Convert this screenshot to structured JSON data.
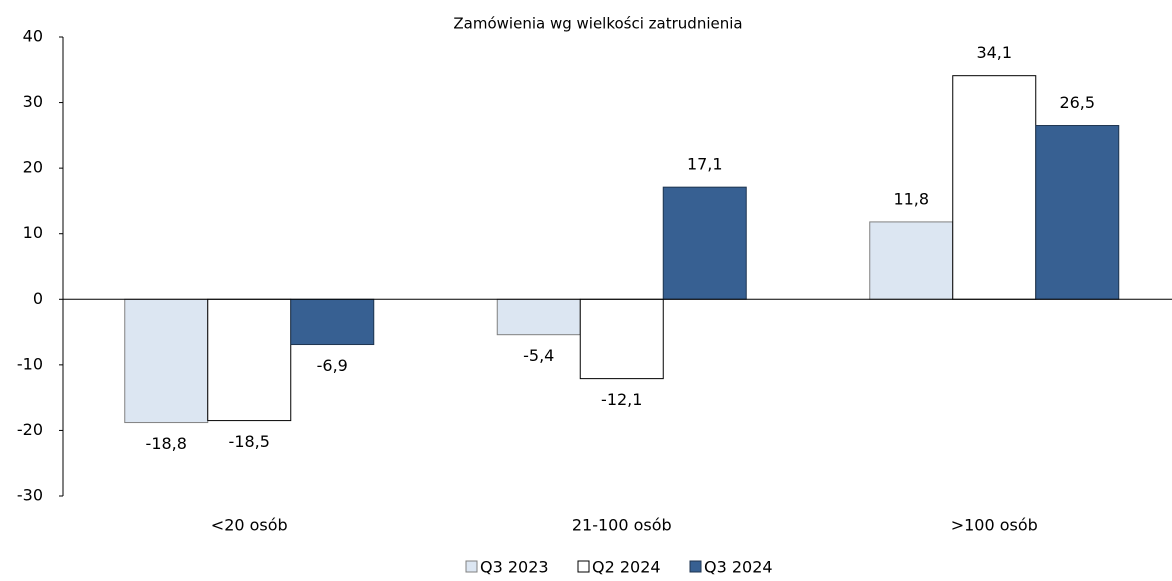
{
  "chart_data": {
    "type": "bar",
    "title": "Zamówienia wg wielkości zatrudnienia",
    "categories": [
      "<20 osób",
      "21-100 osób",
      ">100 osób"
    ],
    "series": [
      {
        "name": "Q3 2023",
        "color": "#dce6f2",
        "values": [
          -18.8,
          -5.4,
          11.8
        ],
        "value_labels": [
          "-18,8",
          "-5,4",
          "11,8"
        ]
      },
      {
        "name": "Q2 2024",
        "color": "#ffffff",
        "values": [
          -18.5,
          -12.1,
          34.1
        ],
        "value_labels": [
          "-18,5",
          "-12,1",
          "34,1"
        ]
      },
      {
        "name": "Q3 2024",
        "color": "#376092",
        "values": [
          -6.9,
          17.1,
          26.5
        ],
        "value_labels": [
          "-6,9",
          "17,1",
          "26,5"
        ]
      }
    ],
    "ylim": [
      -30,
      40
    ],
    "yticks": [
      -30,
      -20,
      -10,
      0,
      10,
      20,
      30,
      40
    ],
    "grid": false,
    "legend": "bottom"
  }
}
